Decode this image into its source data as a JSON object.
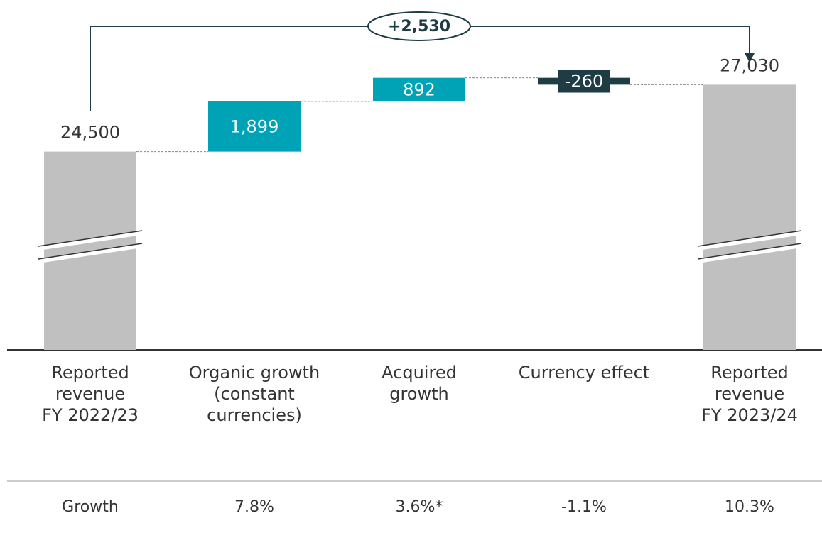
{
  "chart_data": {
    "type": "waterfall",
    "annotation": "+2,530",
    "categories": [
      "Reported\nrevenue\nFY 2022/23",
      "Organic growth\n(constant\ncurrencies)",
      "Acquired\ngrowth",
      "Currency effect",
      "Reported\nrevenue\nFY 2023/24"
    ],
    "values": [
      24500,
      1899,
      892,
      -260,
      27030
    ],
    "value_labels": [
      "24,500",
      "1,899",
      "892",
      "-260",
      "27,030"
    ],
    "kinds": [
      "total",
      "delta",
      "delta",
      "delta",
      "total"
    ],
    "colors": [
      "#c0c0c0",
      "#00a3b5",
      "#00a3b5",
      "#1d3c44",
      "#c0c0c0"
    ],
    "ylim": [
      17000,
      29000
    ],
    "axis_break": true,
    "growth_label": "Growth",
    "growth_labels": [
      "7.8%",
      "3.6%*",
      "-1.1%",
      "10.3%"
    ]
  }
}
